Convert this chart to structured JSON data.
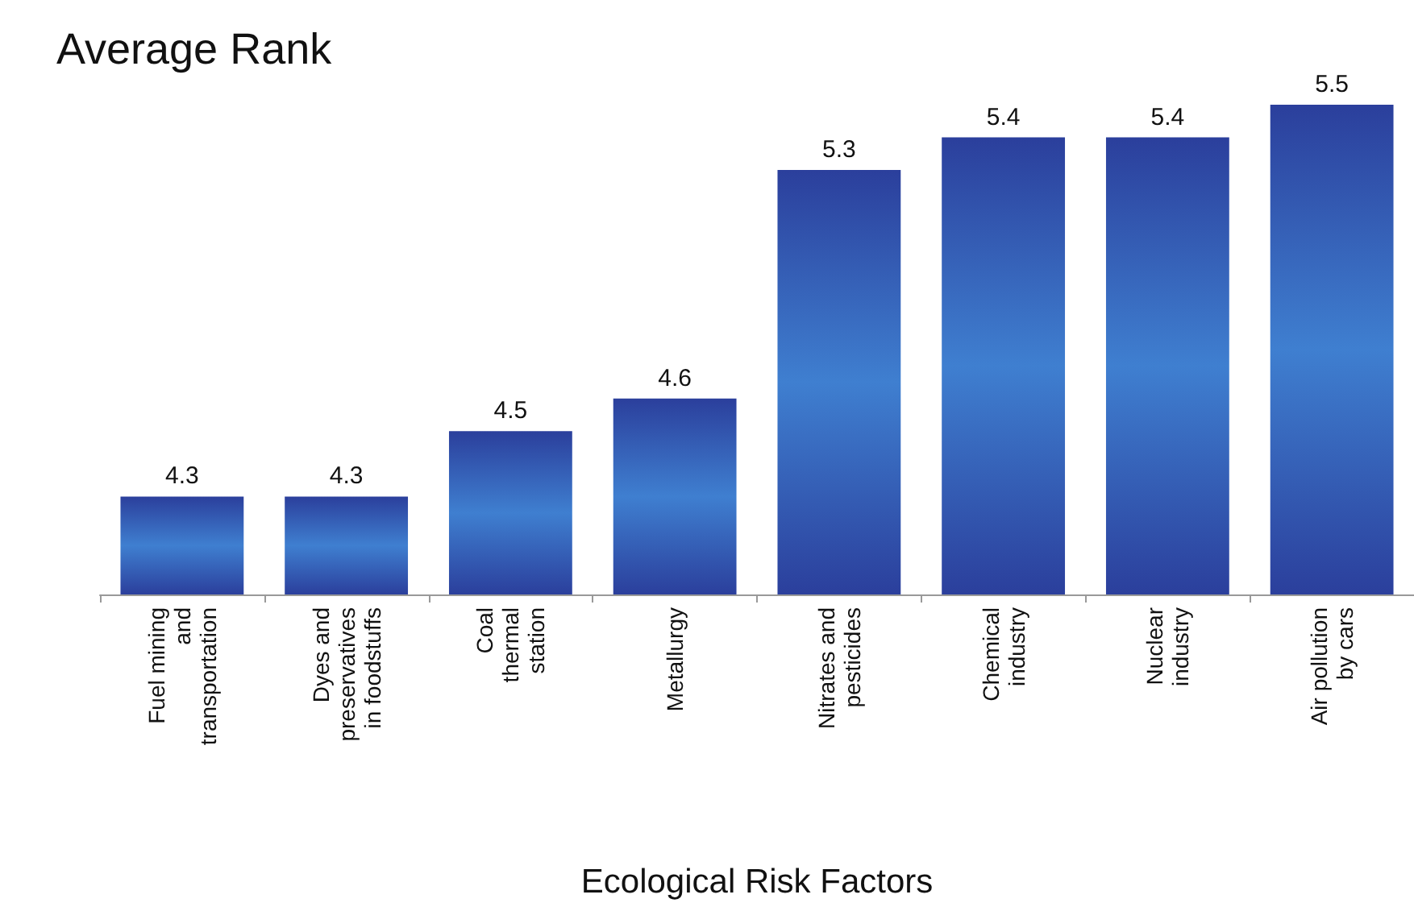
{
  "chart_data": {
    "type": "bar",
    "title": "Average Rank",
    "xlabel": "Ecological Risk Factors",
    "categories": [
      "Fuel mining\nand\ntransportation",
      "Dyes and\npreservatives\nin foodstuffs",
      "Coal\nthermal\nstation",
      "Metallurgy",
      "Nitrates and\npesticides",
      "Chemical\nindustry",
      "Nuclear\nindustry",
      "Air pollution\nby cars"
    ],
    "values": [
      4.3,
      4.3,
      4.5,
      4.6,
      5.3,
      5.4,
      5.4,
      5.5
    ],
    "color": "#2b3f9c",
    "ylim": [
      4,
      5.5
    ],
    "tick_labels": "x",
    "data_labels": true,
    "grid": false
  }
}
